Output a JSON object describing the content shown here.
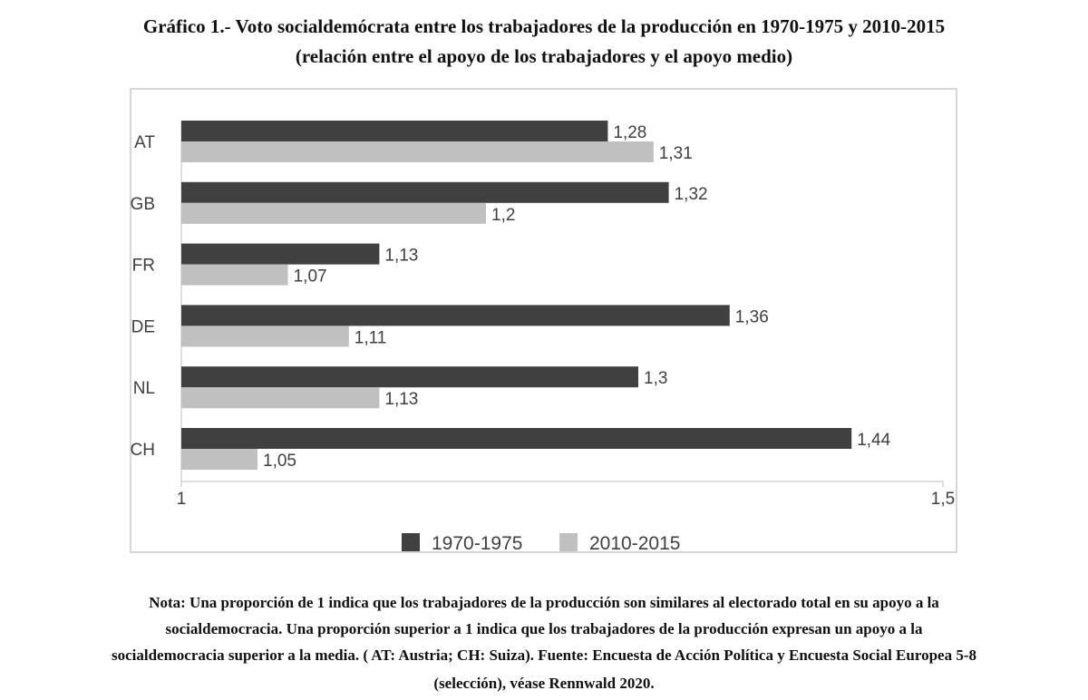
{
  "title_line1": "Gráfico 1.- Voto socialdemócrata entre los trabajadores de la producción en 1970-1975 y 2010-2015",
  "title_line2": "(relación entre el apoyo de los trabajadores y el apoyo medio)",
  "note": {
    "line1": "Nota: Una proporción de 1 indica que los trabajadores de la producción son similares al electorado total en su apoyo a la",
    "line2": "socialdemocracia. Una proporción superior a 1 indica que los trabajadores de la producción expresan un apoyo a la",
    "line3": "socialdemocracia superior a la media. ( AT: Austria; CH: Suiza). Fuente: Encuesta de Acción Política y Encuesta Social Europea 5-8",
    "line4": "(selección), véase Rennwald 2020."
  },
  "colors": {
    "series1": "#404040",
    "series2": "#c0c0c0",
    "axis": "#bfbfbf",
    "text": "#404040"
  },
  "chart_data": {
    "type": "bar",
    "orientation": "horizontal",
    "categories": [
      "AT",
      "GB",
      "FR",
      "DE",
      "NL",
      "CH"
    ],
    "series": [
      {
        "name": "1970-1975",
        "values": [
          1.28,
          1.32,
          1.13,
          1.36,
          1.3,
          1.44
        ],
        "labels": [
          "1,28",
          "1,32",
          "1,13",
          "1,36",
          "1,3",
          "1,44"
        ]
      },
      {
        "name": "2010-2015",
        "values": [
          1.31,
          1.2,
          1.07,
          1.11,
          1.13,
          1.05
        ],
        "labels": [
          "1,31",
          "1,2",
          "1,07",
          "1,11",
          "1,13",
          "1,05"
        ]
      }
    ],
    "xlim": [
      1,
      1.5
    ],
    "xticks": [
      1,
      1.5
    ],
    "xtick_labels": [
      "1",
      "1,5"
    ],
    "grid": false,
    "legend_position": "bottom"
  }
}
